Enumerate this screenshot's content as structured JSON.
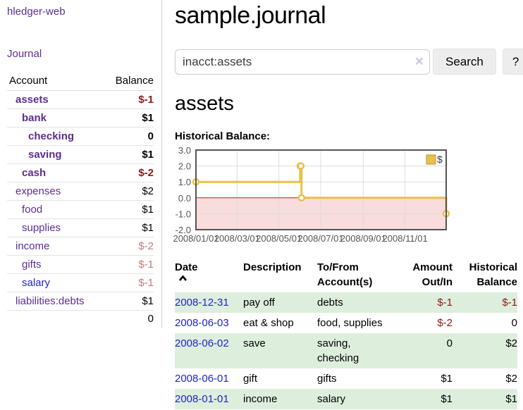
{
  "sidebar": {
    "app_title": "hledger-web",
    "nav": {
      "journal_label": "Journal"
    },
    "accounts_table": {
      "headers": {
        "account": "Account",
        "balance": "Balance"
      },
      "rows": [
        {
          "name": "assets",
          "balance": "$-1",
          "depth": 1,
          "bold": true,
          "balance_tone": "negative-strong"
        },
        {
          "name": "bank",
          "balance": "$1",
          "depth": 2,
          "bold": true,
          "balance_tone": "normal"
        },
        {
          "name": "checking",
          "balance": "0",
          "depth": 3,
          "bold": true,
          "balance_tone": "normal"
        },
        {
          "name": "saving",
          "balance": "$1",
          "depth": 3,
          "bold": true,
          "balance_tone": "normal"
        },
        {
          "name": "cash",
          "balance": "$-2",
          "depth": 2,
          "bold": true,
          "balance_tone": "negative-strong"
        },
        {
          "name": "expenses",
          "balance": "$2",
          "depth": 1,
          "bold": false,
          "balance_tone": "normal"
        },
        {
          "name": "food",
          "balance": "$1",
          "depth": 2,
          "bold": false,
          "balance_tone": "normal"
        },
        {
          "name": "supplies",
          "balance": "$1",
          "depth": 2,
          "bold": false,
          "balance_tone": "normal"
        },
        {
          "name": "income",
          "balance": "$-2",
          "depth": 1,
          "bold": false,
          "balance_tone": "negative-muted"
        },
        {
          "name": "gifts",
          "balance": "$-1",
          "depth": 2,
          "bold": false,
          "balance_tone": "negative-muted"
        },
        {
          "name": "salary",
          "balance": "$-1",
          "depth": 2,
          "bold": false,
          "balance_tone": "negative-muted",
          "link_tone": "unvisited"
        },
        {
          "name": "liabilities:debts",
          "balance": "$1",
          "depth": 1,
          "bold": false,
          "balance_tone": "normal"
        }
      ],
      "total": "0"
    }
  },
  "header": {
    "title": "sample.journal"
  },
  "search": {
    "value": "inacct:assets",
    "clear_glyph": "×",
    "button_label": "Search",
    "help_label": "?"
  },
  "account_view": {
    "heading": "assets",
    "chart_label": "Historical Balance:"
  },
  "chart_data": {
    "type": "line",
    "step": true,
    "title": "Historical Balance",
    "series": [
      {
        "name": "$",
        "color": "#e8c04a",
        "points": [
          [
            "2008-01-01",
            1
          ],
          [
            "2008-06-01",
            2
          ],
          [
            "2008-06-02",
            2
          ],
          [
            "2008-06-03",
            0
          ],
          [
            "2008-12-31",
            -1
          ]
        ]
      }
    ],
    "xlim": [
      "2008-01-01",
      "2008-12-31"
    ],
    "ylim": [
      -2,
      3
    ],
    "y_ticks": [
      3.0,
      2.0,
      1.0,
      0.0,
      -1.0,
      -2.0
    ],
    "x_ticks": [
      "2008/01/01",
      "2008/03/01",
      "2008/05/01",
      "2008/07/01",
      "2008/09/01",
      "2008/11/01"
    ],
    "legend_position": "top-right",
    "grid": true,
    "negative_fill": "#f9dcdc",
    "zero_line_color": "#aa2222",
    "border_color": "#545454"
  },
  "register_table": {
    "headers": {
      "date": "Date",
      "description": "Description",
      "accounts": "To/From Account(s)",
      "amount": "Amount Out/In",
      "balance": "Historical Balance"
    },
    "sort": {
      "column": "date",
      "direction": "ascending"
    },
    "rows": [
      {
        "date": "2008-12-31",
        "description": "pay off",
        "accounts": "debts",
        "amount": "$-1",
        "balance": "$-1",
        "amount_negative": true,
        "balance_negative": true,
        "shaded": true
      },
      {
        "date": "2008-06-03",
        "description": "eat & shop",
        "accounts": "food, supplies",
        "amount": "$-2",
        "balance": "0",
        "amount_negative": true,
        "balance_negative": false,
        "shaded": false
      },
      {
        "date": "2008-06-02",
        "description": "save",
        "accounts": "saving, checking",
        "amount": "0",
        "balance": "$2",
        "amount_negative": false,
        "balance_negative": false,
        "shaded": true
      },
      {
        "date": "2008-06-01",
        "description": "gift",
        "accounts": "gifts",
        "amount": "$1",
        "balance": "$2",
        "amount_negative": false,
        "balance_negative": false,
        "shaded": false
      },
      {
        "date": "2008-01-01",
        "description": "income",
        "accounts": "salary",
        "amount": "$1",
        "balance": "$1",
        "amount_negative": false,
        "balance_negative": false,
        "shaded": true
      }
    ]
  },
  "colors": {
    "link_purple": "#5c2d91",
    "link_blue": "#2222cc",
    "negative_strong": "#8b1a1a",
    "negative_muted": "#bd7b7b",
    "row_shade_green": "#ddeedd",
    "chart_gold": "#e8c04a",
    "chart_negative_pink": "#f9dcdc"
  }
}
